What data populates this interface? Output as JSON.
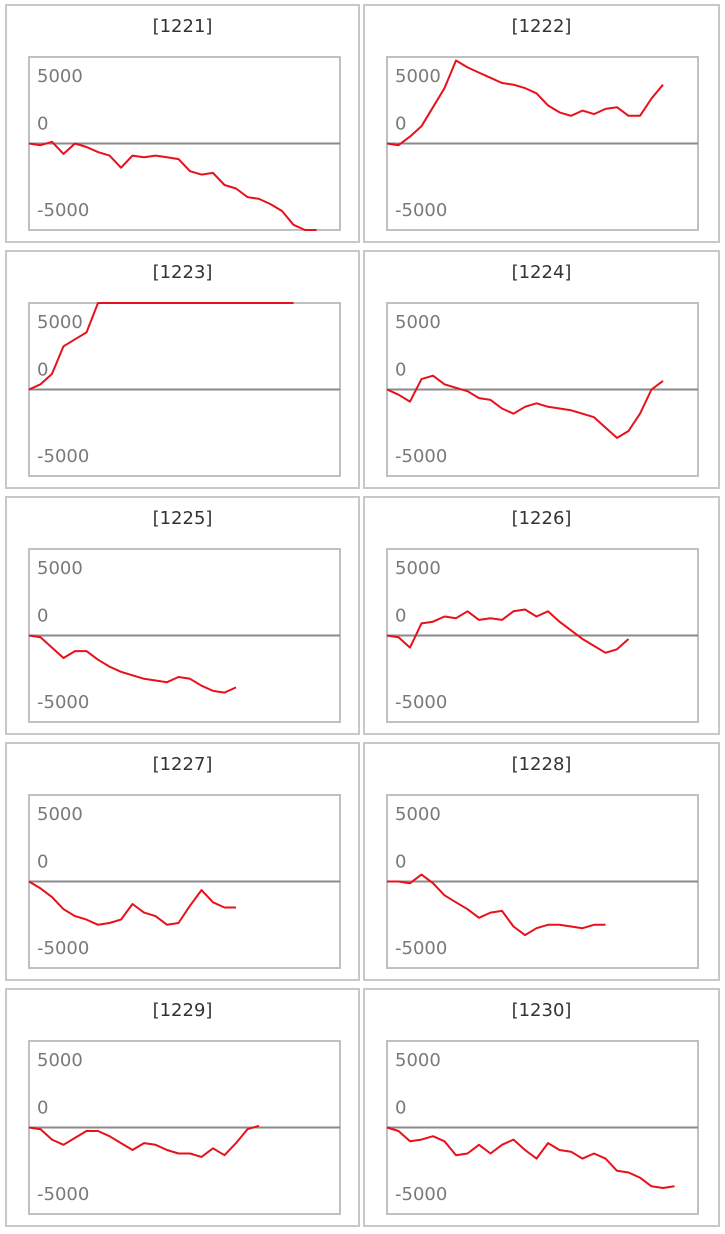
{
  "chart_data": [
    {
      "type": "line",
      "title": "[1221]",
      "color": "#e8101a",
      "ylim": [
        -5000,
        5000
      ],
      "yticks": [
        -5000,
        0,
        5000
      ],
      "grid": true,
      "values": [
        0,
        -100,
        100,
        -600,
        0,
        -200,
        -500,
        -700,
        -1400,
        -700,
        -800,
        -700,
        -800,
        -900,
        -1600,
        -1800,
        -1700,
        -2400,
        -2600,
        -3100,
        -3200,
        -3500,
        -3900,
        -4700,
        -5000,
        -5000
      ]
    },
    {
      "type": "line",
      "title": "[1222]",
      "color": "#e8101a",
      "ylim": [
        -5000,
        5000
      ],
      "yticks": [
        -5000,
        0,
        5000
      ],
      "grid": true,
      "values": [
        0,
        -100,
        400,
        1000,
        2100,
        3200,
        4800,
        4400,
        4100,
        3800,
        3500,
        3400,
        3200,
        2900,
        2200,
        1800,
        1600,
        1900,
        1700,
        2000,
        2100,
        1600,
        1600,
        2600,
        3400
      ]
    },
    {
      "type": "line",
      "title": "[1223]",
      "color": "#e8101a",
      "ylim": [
        -5000,
        5000
      ],
      "yticks": [
        -5000,
        0,
        5000
      ],
      "grid": true,
      "values": [
        0,
        300,
        900,
        2500,
        2900,
        3300,
        5000,
        5000,
        5000,
        5000,
        5000,
        5000,
        5000,
        5000,
        5000,
        5000,
        5000,
        5000,
        5000,
        5000,
        5000,
        5000,
        5000,
        5000
      ]
    },
    {
      "type": "line",
      "title": "[1224]",
      "color": "#e8101a",
      "ylim": [
        -5000,
        5000
      ],
      "yticks": [
        -5000,
        0,
        5000
      ],
      "grid": true,
      "values": [
        0,
        -300,
        -700,
        600,
        800,
        300,
        100,
        -100,
        -500,
        -600,
        -1100,
        -1400,
        -1000,
        -800,
        -1000,
        -1100,
        -1200,
        -1400,
        -1600,
        -2200,
        -2800,
        -2400,
        -1400,
        0,
        500
      ]
    },
    {
      "type": "line",
      "title": "[1225]",
      "color": "#e8101a",
      "ylim": [
        -5000,
        5000
      ],
      "yticks": [
        -5000,
        0,
        5000
      ],
      "grid": true,
      "values": [
        0,
        -100,
        -700,
        -1300,
        -900,
        -900,
        -1400,
        -1800,
        -2100,
        -2300,
        -2500,
        -2600,
        -2700,
        -2400,
        -2500,
        -2900,
        -3200,
        -3300,
        -3000
      ]
    },
    {
      "type": "line",
      "title": "[1226]",
      "color": "#e8101a",
      "ylim": [
        -5000,
        5000
      ],
      "yticks": [
        -5000,
        0,
        5000
      ],
      "grid": true,
      "values": [
        0,
        -100,
        -700,
        700,
        800,
        1100,
        1000,
        1400,
        900,
        1000,
        900,
        1400,
        1500,
        1100,
        1400,
        800,
        300,
        -200,
        -600,
        -1000,
        -800,
        -200
      ]
    },
    {
      "type": "line",
      "title": "[1227]",
      "color": "#e8101a",
      "ylim": [
        -5000,
        5000
      ],
      "yticks": [
        -5000,
        0,
        5000
      ],
      "grid": true,
      "values": [
        0,
        -400,
        -900,
        -1600,
        -2000,
        -2200,
        -2500,
        -2400,
        -2200,
        -1300,
        -1800,
        -2000,
        -2500,
        -2400,
        -1400,
        -500,
        -1200,
        -1500,
        -1500
      ]
    },
    {
      "type": "line",
      "title": "[1228]",
      "color": "#e8101a",
      "ylim": [
        -5000,
        5000
      ],
      "yticks": [
        -5000,
        0,
        5000
      ],
      "grid": true,
      "values": [
        0,
        0,
        -100,
        400,
        -100,
        -800,
        -1200,
        -1600,
        -2100,
        -1800,
        -1700,
        -2600,
        -3100,
        -2700,
        -2500,
        -2500,
        -2600,
        -2700,
        -2500,
        -2500
      ]
    },
    {
      "type": "line",
      "title": "[1229]",
      "color": "#e8101a",
      "ylim": [
        -5000,
        5000
      ],
      "yticks": [
        -5000,
        0,
        5000
      ],
      "grid": true,
      "values": [
        0,
        -100,
        -700,
        -1000,
        -600,
        -200,
        -200,
        -500,
        -900,
        -1300,
        -900,
        -1000,
        -1300,
        -1500,
        -1500,
        -1700,
        -1200,
        -1600,
        -900,
        -100,
        100
      ]
    },
    {
      "type": "line",
      "title": "[1230]",
      "color": "#e8101a",
      "ylim": [
        -5000,
        5000
      ],
      "yticks": [
        -5000,
        0,
        5000
      ],
      "grid": true,
      "values": [
        0,
        -200,
        -800,
        -700,
        -500,
        -800,
        -1600,
        -1500,
        -1000,
        -1500,
        -1000,
        -700,
        -1300,
        -1800,
        -900,
        -1300,
        -1400,
        -1800,
        -1500,
        -1800,
        -2500,
        -2600,
        -2900,
        -3400,
        -3500,
        -3400
      ]
    }
  ]
}
